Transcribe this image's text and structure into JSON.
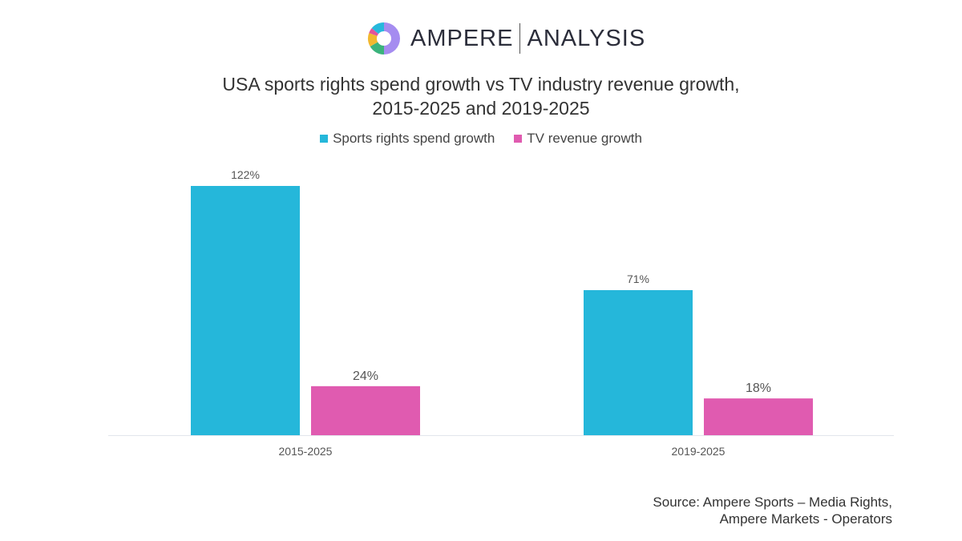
{
  "logo": {
    "brand": "AMPERE",
    "suffix": "ANALYSIS",
    "colors": [
      "#a58cf0",
      "#3bb37c",
      "#f2b830",
      "#e2539b",
      "#27b8dc"
    ]
  },
  "chart_data": {
    "type": "bar",
    "title_lines": [
      "USA sports rights spend growth vs TV industry revenue growth,",
      "2015-2025 and 2019-2025"
    ],
    "categories": [
      "2015-2025",
      "2019-2025"
    ],
    "series": [
      {
        "name": "Sports rights spend growth",
        "values": [
          122,
          71
        ],
        "labels": [
          "122%",
          "71%"
        ],
        "color": "#25b7da"
      },
      {
        "name": "TV revenue growth",
        "values": [
          24,
          18
        ],
        "labels": [
          "24%",
          "18%"
        ],
        "color": "#e05bb0"
      }
    ],
    "unit": "%",
    "ylim": [
      0,
      122
    ],
    "grid": false,
    "legend_position": "top-center"
  },
  "source": {
    "line1": "Source: Ampere Sports – Media Rights,",
    "line2": "Ampere Markets - Operators"
  }
}
